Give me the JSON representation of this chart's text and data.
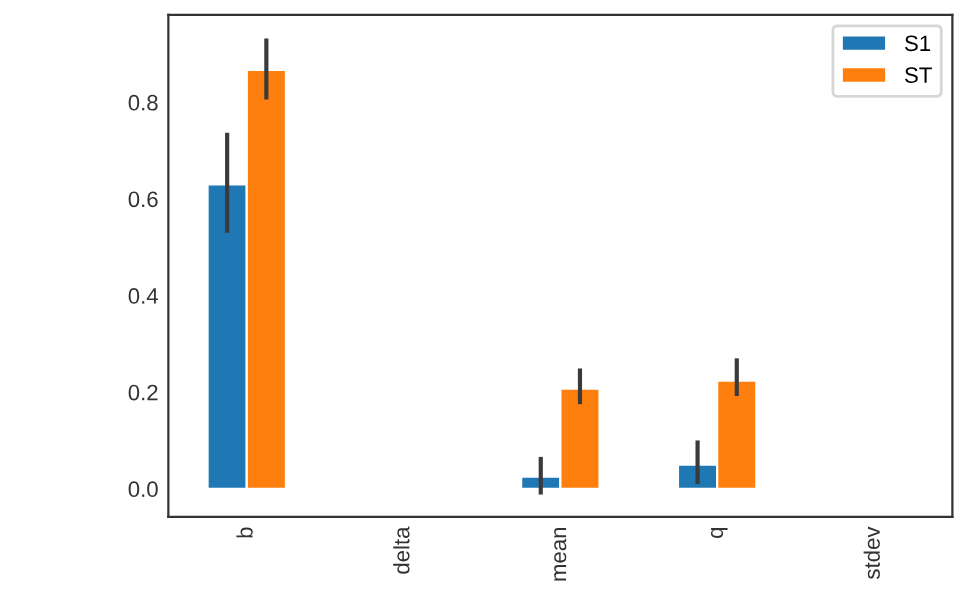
{
  "chart_data": {
    "type": "bar",
    "categories": [
      "b",
      "delta",
      "mean",
      "q",
      "stdev"
    ],
    "series": [
      {
        "name": "S1",
        "color": "#1f77b4",
        "values": [
          0.63,
          null,
          0.025,
          0.05,
          null
        ],
        "errors": [
          [
            0.53,
            0.737
          ],
          null,
          [
            -0.012,
            0.066
          ],
          [
            0.01,
            0.1
          ],
          null
        ]
      },
      {
        "name": "ST",
        "color": "#ff7f0e",
        "values": [
          0.867,
          null,
          0.207,
          0.224,
          null
        ],
        "errors": [
          [
            0.806,
            0.932
          ],
          null,
          [
            0.175,
            0.249
          ],
          [
            0.192,
            0.27
          ],
          null
        ]
      }
    ],
    "ylim": [
      -0.058,
      0.981
    ],
    "yticks": [
      {
        "value": 0,
        "label": "0.0"
      },
      0.2,
      0.4,
      0.6,
      0.8
    ],
    "grid": false,
    "legend": "top right"
  }
}
